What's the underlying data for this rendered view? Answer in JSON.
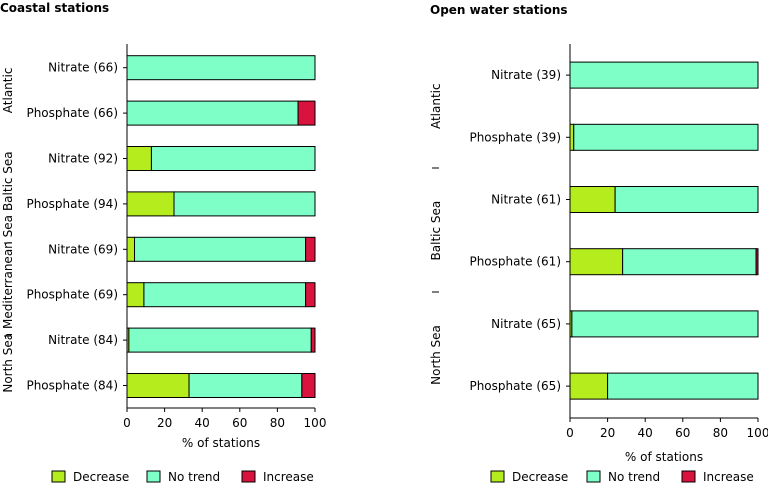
{
  "chart_data": [
    {
      "type": "bar",
      "stacked": true,
      "orientation": "horizontal",
      "title": "Coastal stations",
      "xlabel": "% of stations",
      "xlim": [
        0,
        100
      ],
      "xticks": [
        "0",
        "20",
        "40",
        "60",
        "80",
        "100"
      ],
      "groups": [
        {
          "name": "Atlantic",
          "categories": [
            "Nitrate (66)",
            "Phosphate (66)"
          ]
        },
        {
          "name": "Baltic Sea",
          "categories": [
            "Nitrate (92)",
            "Phosphate (94)"
          ]
        },
        {
          "name": "Mediterranean Sea",
          "categories": [
            "Nitrate (69)",
            "Phosphate (69)"
          ]
        },
        {
          "name": "North Sea",
          "categories": [
            "Nitrate (84)",
            "Phosphate (84)"
          ]
        }
      ],
      "categories": [
        "Nitrate (66)",
        "Phosphate (66)",
        "Nitrate (92)",
        "Phosphate (94)",
        "Nitrate (69)",
        "Phosphate (69)",
        "Nitrate (84)",
        "Phosphate (84)"
      ],
      "series": [
        {
          "name": "Decrease",
          "values": [
            0,
            0,
            13,
            25,
            4,
            9,
            1,
            33
          ]
        },
        {
          "name": "No trend",
          "values": [
            100,
            91,
            87,
            75,
            91,
            86,
            97,
            60
          ]
        },
        {
          "name": "Increase",
          "values": [
            0,
            9,
            0,
            0,
            5,
            5,
            2,
            7
          ]
        }
      ]
    },
    {
      "type": "bar",
      "stacked": true,
      "orientation": "horizontal",
      "title": "Open water stations",
      "xlabel": "% of stations",
      "xlim": [
        0,
        100
      ],
      "xticks": [
        "0",
        "20",
        "40",
        "60",
        "80",
        "100"
      ],
      "groups": [
        {
          "name": "Atlantic",
          "categories": [
            "Nitrate (39)",
            "Phosphate (39)"
          ]
        },
        {
          "name": "Baltic Sea",
          "categories": [
            "Nitrate (61)",
            "Phosphate (61)"
          ]
        },
        {
          "name": "North Sea",
          "categories": [
            "Nitrate (65)",
            "Phosphate (65)"
          ]
        }
      ],
      "categories": [
        "Nitrate (39)",
        "Phosphate (39)",
        "Nitrate (61)",
        "Phosphate (61)",
        "Nitrate (65)",
        "Phosphate (65)"
      ],
      "series": [
        {
          "name": "Decrease",
          "values": [
            0,
            2,
            24,
            28,
            1,
            20
          ]
        },
        {
          "name": "No trend",
          "values": [
            100,
            98,
            76,
            71,
            99,
            80
          ]
        },
        {
          "name": "Increase",
          "values": [
            0,
            0,
            0,
            1,
            0,
            0
          ]
        }
      ]
    }
  ],
  "legend": [
    {
      "name": "Decrease",
      "color": "#b5ec1e"
    },
    {
      "name": "No trend",
      "color": "#7effc8"
    },
    {
      "name": "Increase",
      "color": "#d9123e"
    }
  ]
}
